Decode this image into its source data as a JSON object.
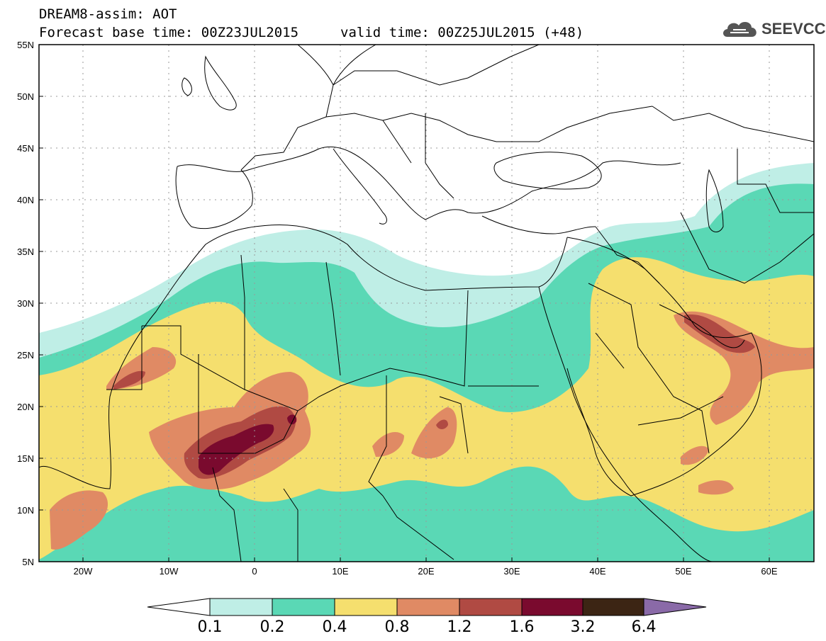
{
  "title": {
    "line1": "DREAM8-assim: AOT",
    "base_time": "Forecast base time: 00Z23JUL2015",
    "valid_time": "valid time: 00Z25JUL2015 (+48)"
  },
  "logo": {
    "text": "SEEVCCC",
    "icon": "cloud-icon"
  },
  "map": {
    "lon_range": [
      -25,
      65
    ],
    "lat_range": [
      5,
      55
    ],
    "lat_labels": [
      "55N",
      "50N",
      "45N",
      "40N",
      "35N",
      "30N",
      "25N",
      "20N",
      "15N",
      "10N",
      "5N"
    ],
    "lon_labels": [
      "20W",
      "10W",
      "0",
      "10E",
      "20E",
      "30E",
      "40E",
      "50E",
      "60E"
    ],
    "grid": "dotted"
  },
  "colorbar": {
    "labels": [
      "0.1",
      "0.2",
      "0.4",
      "0.8",
      "1.2",
      "1.6",
      "3.2",
      "6.4"
    ],
    "colors": [
      "#ffffff",
      "#bfeee6",
      "#5ad8b5",
      "#f5df6e",
      "#e08a64",
      "#b04a43",
      "#7a0a2e",
      "#3c2514",
      "#8a6aa8"
    ]
  },
  "colors": {
    "c01": "#bfeee6",
    "c02": "#5ad8b5",
    "c04": "#f5df6e",
    "c08": "#e08a64",
    "c12": "#b04a43",
    "c16": "#7a0a2e",
    "c32": "#3c2514"
  }
}
